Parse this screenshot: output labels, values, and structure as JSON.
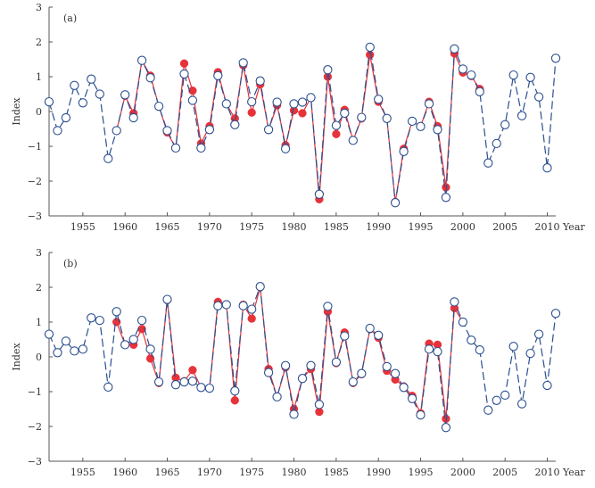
{
  "chart_data": [
    {
      "type": "line",
      "panel_label": "(a)",
      "ylabel": "Index",
      "xlabel": "Year",
      "ylim": [
        -3,
        3
      ],
      "xlim": [
        1951,
        2011
      ],
      "x_tick_labels": [
        "1955",
        "1960",
        "1965",
        "1970",
        "1975",
        "1980",
        "1985",
        "1990",
        "1995",
        "2000",
        "2005",
        "2010"
      ],
      "y_tick_labels": [
        "3",
        "2",
        "1",
        "0",
        "−1",
        "−2",
        "−3"
      ],
      "grid": false,
      "series": [
        {
          "marker": "open-circle",
          "color": "#2a4f8f",
          "x": [
            1951,
            1952,
            1953,
            1954,
            1955,
            1956,
            1957,
            1958,
            1959,
            1960,
            1961,
            1962,
            1963,
            1964,
            1965,
            1966,
            1967,
            1968,
            1969,
            1970,
            1971,
            1972,
            1973,
            1974,
            1975,
            1976,
            1977,
            1978,
            1979,
            1980,
            1981,
            1982,
            1983,
            1984,
            1985,
            1986,
            1987,
            1988,
            1989,
            1990,
            1991,
            1992,
            1993,
            1994,
            1995,
            1996,
            1997,
            1998,
            1999,
            2000,
            2001,
            2002,
            2003,
            2004,
            2005,
            2006,
            2007,
            2008,
            2009,
            2010,
            2011
          ],
          "values": [
            0.28,
            -0.55,
            -0.18,
            0.75,
            0.25,
            0.93,
            0.5,
            -1.35,
            -0.55,
            0.48,
            -0.18,
            1.47,
            0.97,
            0.15,
            -0.55,
            -1.05,
            1.08,
            0.32,
            -1.05,
            -0.52,
            1.03,
            0.22,
            -0.38,
            1.4,
            0.28,
            0.88,
            -0.52,
            0.27,
            -1.07,
            0.22,
            0.27,
            0.4,
            -2.38,
            1.2,
            -0.4,
            -0.05,
            -0.83,
            -0.17,
            1.85,
            0.35,
            -0.2,
            -2.62,
            -1.15,
            -0.28,
            -0.43,
            0.22,
            -0.52,
            -2.47,
            1.8,
            1.22,
            1.05,
            0.57,
            -1.48,
            -0.92,
            -0.38,
            1.05,
            -0.12,
            0.98,
            0.42,
            -1.62,
            1.53
          ]
        },
        {
          "marker": "filled-circle",
          "color": "#e8323a",
          "x": [
            1959,
            1960,
            1961,
            1962,
            1963,
            1964,
            1965,
            1966,
            1967,
            1968,
            1969,
            1970,
            1971,
            1972,
            1973,
            1974,
            1975,
            1976,
            1977,
            1978,
            1979,
            1980,
            1981,
            1982,
            1983,
            1984,
            1985,
            1986,
            1987,
            1988,
            1989,
            1990,
            1991,
            1992,
            1993,
            1994,
            1995,
            1996,
            1997,
            1998,
            1999,
            2000,
            2001,
            2002
          ],
          "values": [
            -0.55,
            0.45,
            -0.05,
            1.47,
            1.03,
            0.15,
            -0.6,
            -1.05,
            1.38,
            0.6,
            -0.92,
            -0.42,
            1.13,
            0.22,
            -0.2,
            1.33,
            -0.03,
            0.78,
            -0.52,
            0.18,
            -0.97,
            0.03,
            -0.05,
            0.4,
            -2.52,
            1.0,
            -0.65,
            0.05,
            -0.83,
            -0.2,
            1.63,
            0.28,
            -0.2,
            -2.6,
            -1.07,
            -0.28,
            -0.43,
            0.28,
            -0.42,
            -2.18,
            1.67,
            1.12,
            1.02,
            0.65
          ]
        }
      ]
    },
    {
      "type": "line",
      "panel_label": "(b)",
      "ylabel": "Index",
      "xlabel": "Year",
      "ylim": [
        -3,
        3
      ],
      "xlim": [
        1951,
        2011
      ],
      "x_tick_labels": [
        "1955",
        "1960",
        "1965",
        "1970",
        "1975",
        "1980",
        "1985",
        "1990",
        "1995",
        "2000",
        "2005",
        "2010"
      ],
      "y_tick_labels": [
        "3",
        "2",
        "1",
        "0",
        "−1",
        "−2",
        "−3"
      ],
      "grid": false,
      "series": [
        {
          "marker": "open-circle",
          "color": "#2a4f8f",
          "x": [
            1951,
            1952,
            1953,
            1954,
            1955,
            1956,
            1957,
            1958,
            1959,
            1960,
            1961,
            1962,
            1963,
            1964,
            1965,
            1966,
            1967,
            1968,
            1969,
            1970,
            1971,
            1972,
            1973,
            1974,
            1975,
            1976,
            1977,
            1978,
            1979,
            1980,
            1981,
            1982,
            1983,
            1984,
            1985,
            1986,
            1987,
            1988,
            1989,
            1990,
            1991,
            1992,
            1993,
            1994,
            1995,
            1996,
            1997,
            1998,
            1999,
            2000,
            2001,
            2002,
            2003,
            2004,
            2005,
            2006,
            2007,
            2008,
            2009,
            2010,
            2011
          ],
          "values": [
            0.65,
            0.12,
            0.45,
            0.17,
            0.22,
            1.12,
            1.05,
            -0.87,
            1.3,
            0.35,
            0.5,
            1.05,
            0.22,
            -0.72,
            1.65,
            -0.8,
            -0.72,
            -0.7,
            -0.88,
            -0.9,
            1.47,
            1.5,
            -0.98,
            1.47,
            1.37,
            2.02,
            -0.45,
            -1.15,
            -0.25,
            -1.65,
            -0.62,
            -0.25,
            -1.37,
            1.45,
            -0.15,
            0.6,
            -0.72,
            -0.48,
            0.82,
            0.62,
            -0.28,
            -0.48,
            -0.88,
            -1.2,
            -1.67,
            0.22,
            0.15,
            -2.03,
            1.58,
            1.0,
            0.48,
            0.2,
            -1.53,
            -1.25,
            -1.1,
            0.3,
            -1.35,
            0.1,
            0.65,
            -0.82,
            1.25
          ]
        },
        {
          "marker": "filled-circle",
          "color": "#e8323a",
          "x": [
            1959,
            1960,
            1961,
            1962,
            1963,
            1964,
            1965,
            1966,
            1967,
            1968,
            1969,
            1970,
            1971,
            1972,
            1973,
            1974,
            1975,
            1976,
            1977,
            1978,
            1979,
            1980,
            1981,
            1982,
            1983,
            1984,
            1985,
            1986,
            1987,
            1988,
            1989,
            1990,
            1991,
            1992,
            1993,
            1994,
            1995,
            1996,
            1997,
            1998,
            1999,
            2000
          ],
          "values": [
            1.0,
            0.35,
            0.35,
            0.8,
            -0.05,
            -0.75,
            1.63,
            -0.6,
            -0.7,
            -0.38,
            -0.88,
            -0.9,
            1.58,
            1.5,
            -1.25,
            1.5,
            1.1,
            2.0,
            -0.35,
            -1.15,
            -0.3,
            -1.5,
            -0.62,
            -0.35,
            -1.58,
            1.3,
            -0.18,
            0.7,
            -0.75,
            -0.5,
            0.8,
            0.55,
            -0.4,
            -0.65,
            -0.85,
            -1.12,
            -1.62,
            0.38,
            0.35,
            -1.78,
            1.4,
            1.0
          ]
        }
      ]
    }
  ]
}
